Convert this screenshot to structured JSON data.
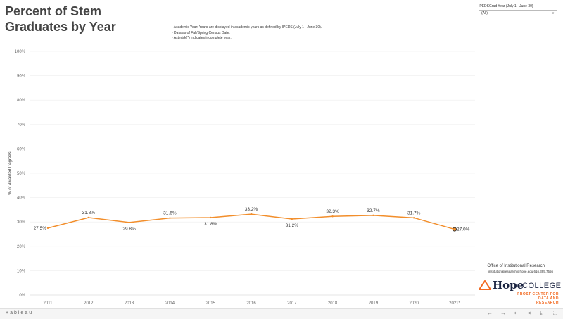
{
  "title": "Percent of Stem Graduates by Year",
  "notes": [
    "- Academic Year: Years are displayed in academic years as defined by IPEDS (July 1 - June 30).",
    "- Data as of Fall/Spring Census Date.",
    "- Asterisk(*) indicates incomplete year."
  ],
  "filter": {
    "label": "IPEDSGrad Year (July 1 - June 30)",
    "value": "(All)"
  },
  "office": "Office of Institutional Research",
  "contact": "institutionalresearch@hope.edu  616.395.7556",
  "logo": {
    "hope": "Hope",
    "college": "COLLEGE",
    "frost1": "FROST CENTER FOR",
    "frost2": "DATA AND RESEARCH"
  },
  "footer": {
    "brand": "+ableau"
  },
  "chart_data": {
    "type": "line",
    "ylabel": "% of Awarded Degrees",
    "ylim": [
      0,
      100
    ],
    "yticks": [
      "0%",
      "10%",
      "20%",
      "30%",
      "40%",
      "50%",
      "60%",
      "70%",
      "80%",
      "90%",
      "100%"
    ],
    "categories": [
      "2011",
      "2012",
      "2013",
      "2014",
      "2015",
      "2016",
      "2017",
      "2018",
      "2019",
      "2020",
      "2021*"
    ],
    "values": [
      27.5,
      31.8,
      29.8,
      31.6,
      31.8,
      33.2,
      31.2,
      32.3,
      32.7,
      31.7,
      27.0
    ],
    "labels": [
      "27.5%",
      "31.8%",
      "29.8%",
      "31.6%",
      "31.8%",
      "33.2%",
      "31.2%",
      "32.3%",
      "32.7%",
      "31.7%",
      "27.0%"
    ],
    "color": "#f28e2b",
    "grid": true
  }
}
